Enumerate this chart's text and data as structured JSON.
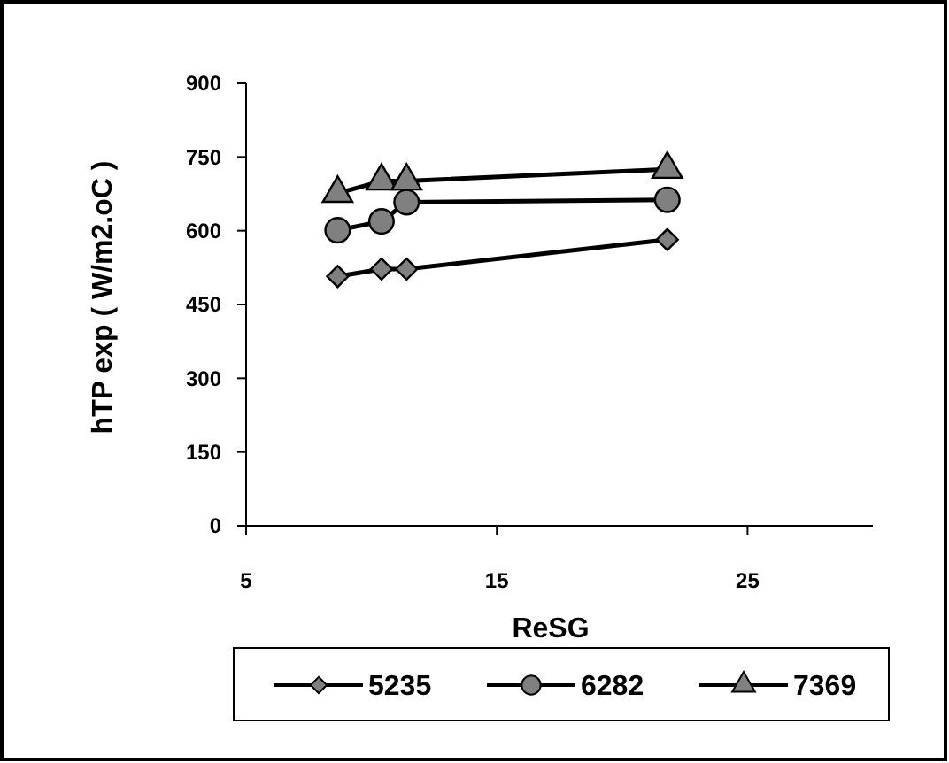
{
  "chart_data": {
    "type": "line",
    "xlabel": "ReSG",
    "ylabel": "hTP exp  ( W/m2.oC )",
    "xlim": [
      5,
      30
    ],
    "xticks": [
      5,
      15,
      25
    ],
    "ylim": [
      0,
      900
    ],
    "yticks": [
      0,
      150,
      300,
      450,
      600,
      750,
      900
    ],
    "x": [
      8.65,
      10.4,
      11.4,
      21.8
    ],
    "grid": false,
    "legend": "bottom",
    "line_style": "solid",
    "series": [
      {
        "name": "5235",
        "color": "#000000",
        "marker": "diamond",
        "values": [
          507,
          522,
          522,
          582
        ]
      },
      {
        "name": "6282",
        "color": "#000000",
        "marker": "circle",
        "values": [
          601,
          619,
          658,
          663
        ]
      },
      {
        "name": "7369",
        "color": "#000000",
        "marker": "triangle",
        "values": [
          676,
          701,
          701,
          725
        ]
      }
    ]
  }
}
